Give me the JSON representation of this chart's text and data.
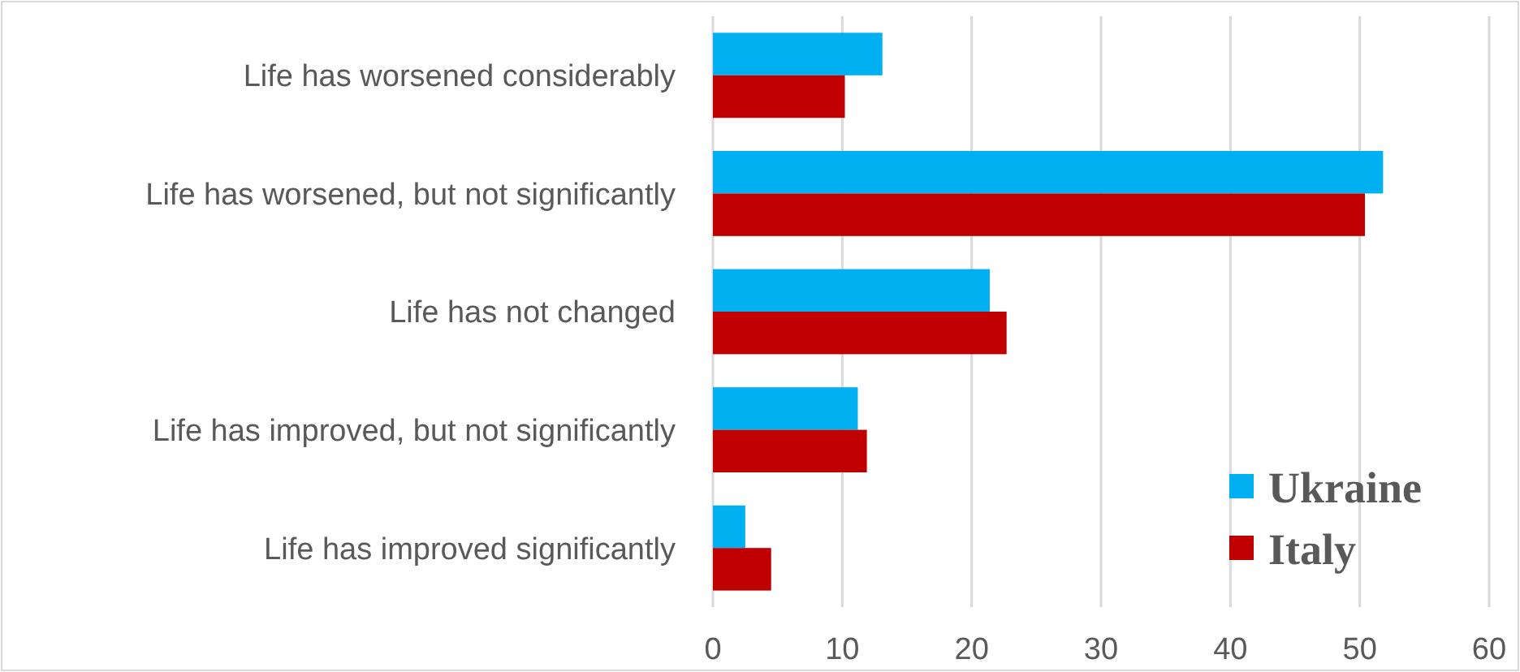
{
  "chart_data": {
    "type": "bar",
    "orientation": "horizontal",
    "categories": [
      "Life has worsened considerably",
      "Life has worsened, but not significantly",
      "Life has not changed",
      "Life has improved, but not significantly",
      "Life has improved significantly"
    ],
    "series": [
      {
        "name": "Ukraine",
        "color": "#00b0f0",
        "values": [
          13.1,
          51.8,
          21.4,
          11.2,
          2.5
        ]
      },
      {
        "name": "Italy",
        "color": "#c00000",
        "values": [
          10.2,
          50.4,
          22.7,
          11.9,
          4.5
        ]
      }
    ],
    "xlim": [
      0,
      60
    ],
    "xticks": [
      0,
      10,
      20,
      30,
      40,
      50,
      60
    ],
    "grid": "x",
    "legend": "bottom right"
  }
}
